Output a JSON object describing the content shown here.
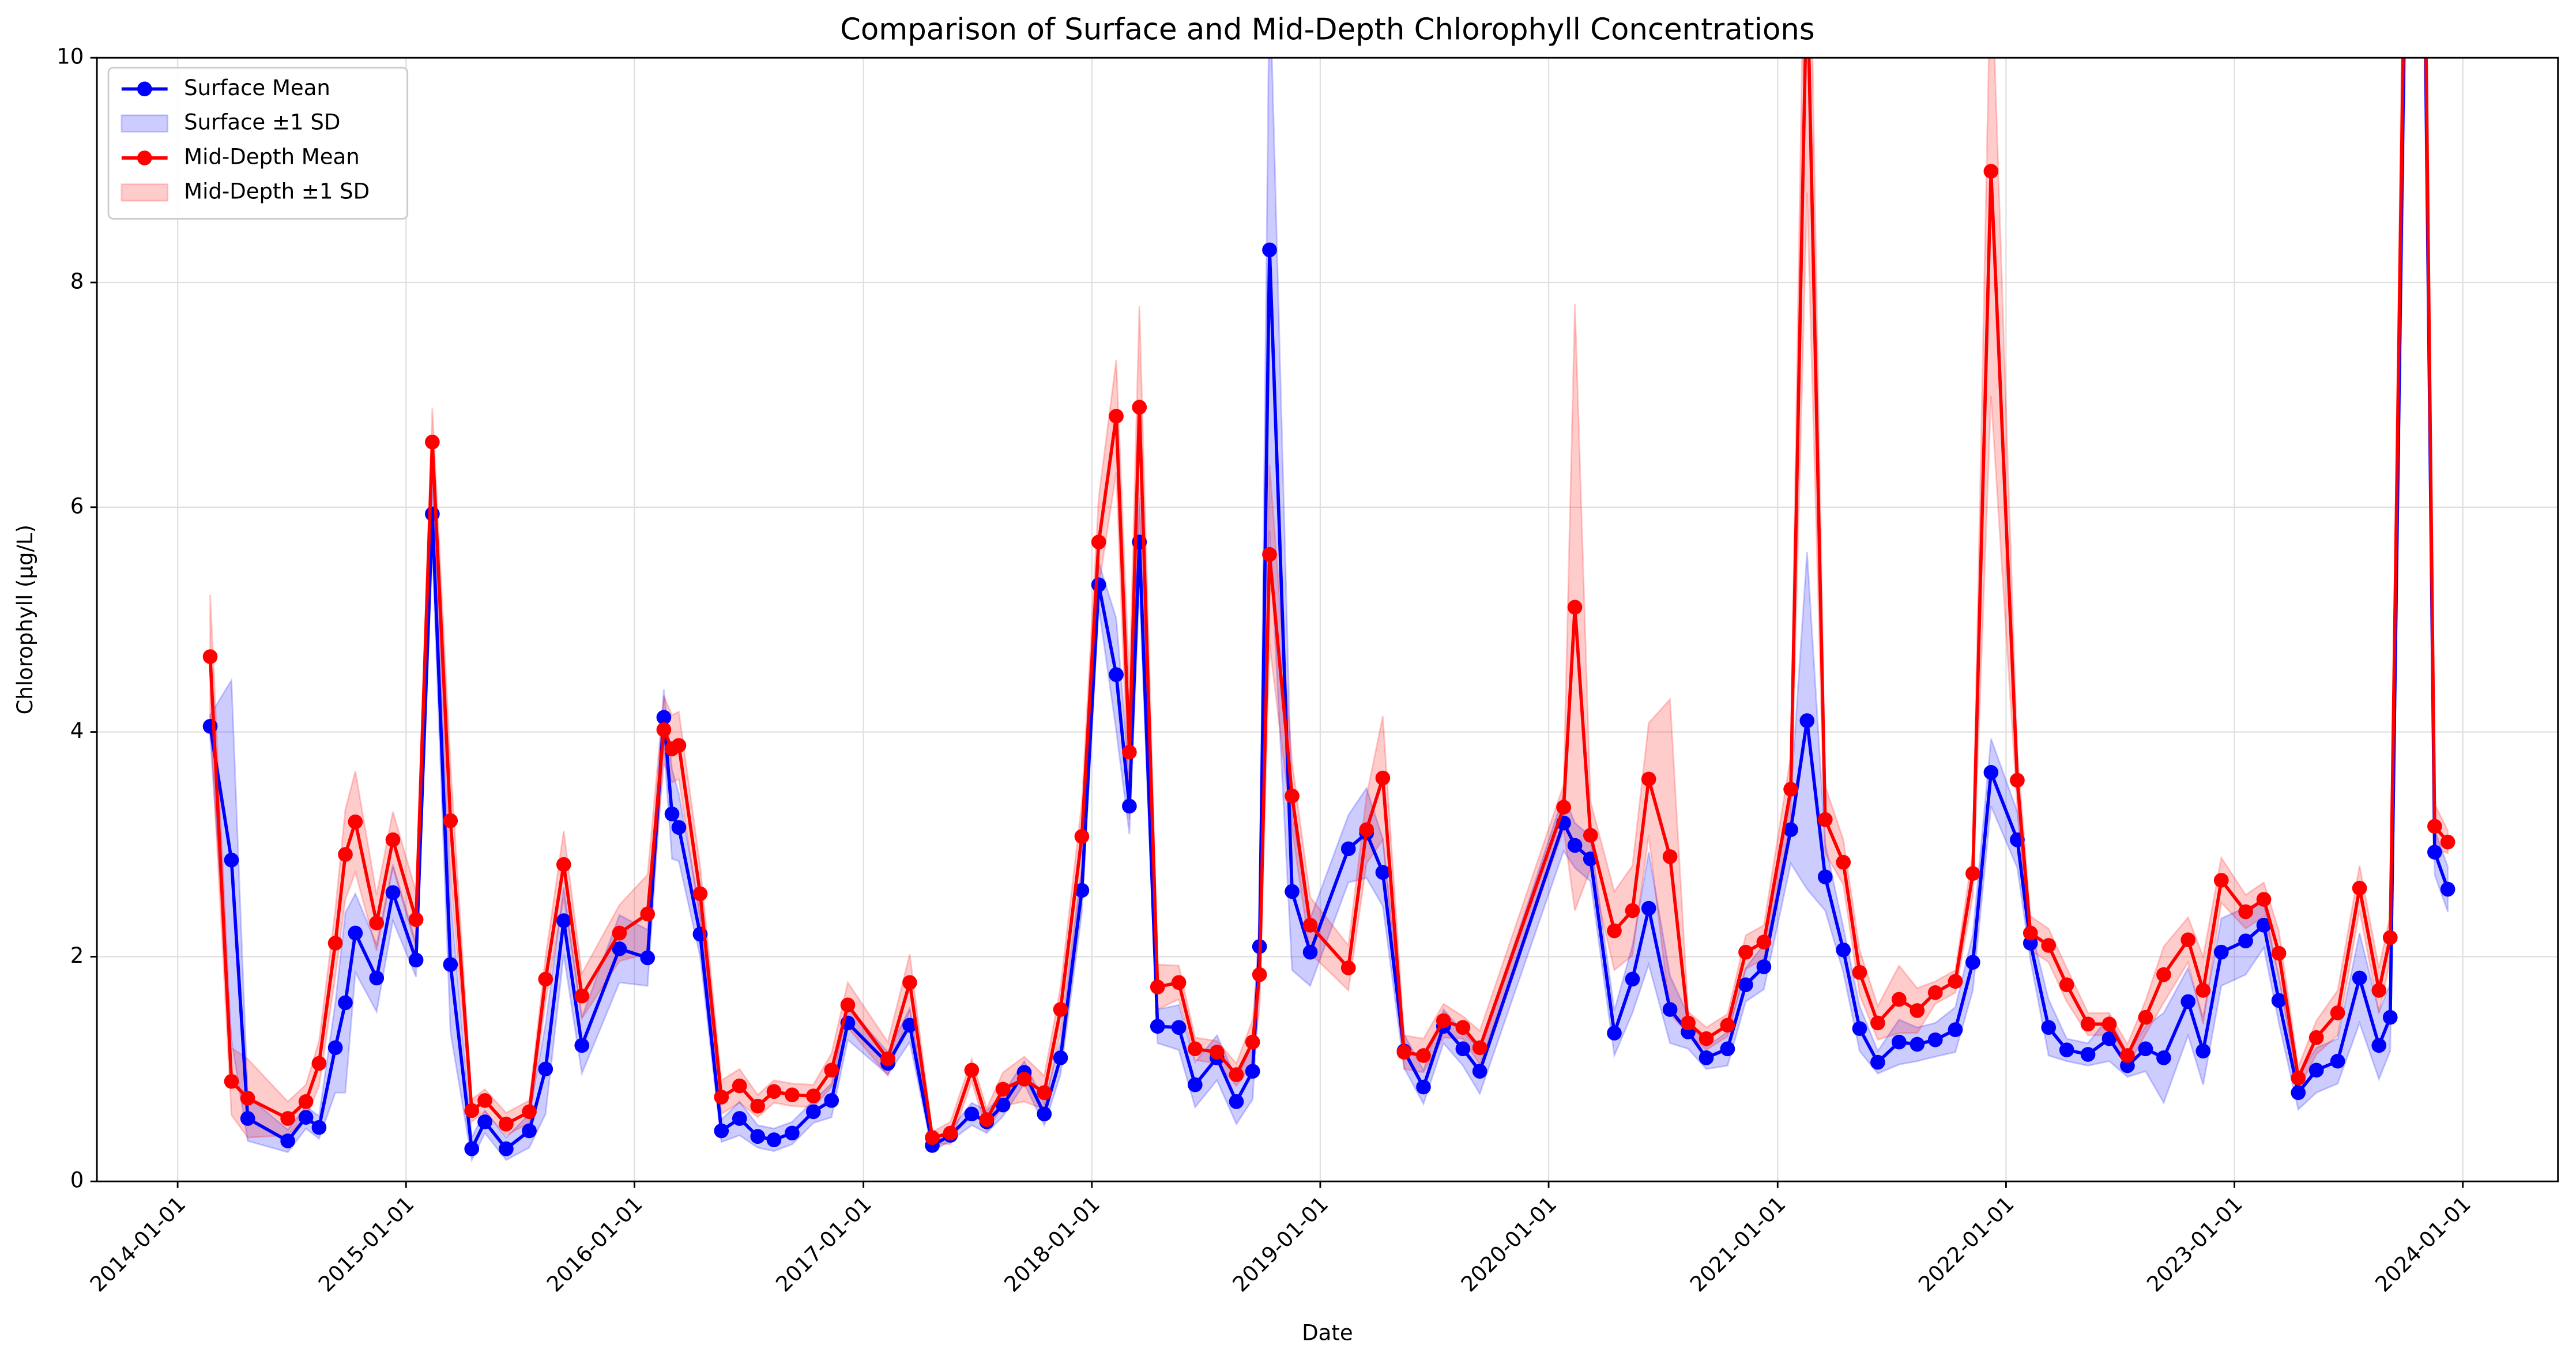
{
  "chart_data": {
    "type": "line",
    "title": "Comparison of Surface and Mid-Depth Chlorophyll Concentrations",
    "xlabel": "Date",
    "ylabel": "Chlorophyll (µg/L)",
    "x": [
      "2014-02-22",
      "2014-03-28",
      "2014-04-23",
      "2014-06-26",
      "2014-07-25",
      "2014-08-15",
      "2014-09-10",
      "2014-09-26",
      "2014-10-12",
      "2014-11-15",
      "2014-12-11",
      "2015-01-17",
      "2015-02-12",
      "2015-03-13",
      "2015-04-16",
      "2015-05-07",
      "2015-06-10",
      "2015-07-17",
      "2015-08-12",
      "2015-09-10",
      "2015-10-09",
      "2015-12-08",
      "2016-01-22",
      "2016-02-17",
      "2016-03-01",
      "2016-03-12",
      "2016-04-15",
      "2016-05-19",
      "2016-06-17",
      "2016-07-16",
      "2016-08-11",
      "2016-09-09",
      "2016-10-13",
      "2016-11-11",
      "2016-12-07",
      "2017-02-09",
      "2017-03-16",
      "2017-04-21",
      "2017-05-20",
      "2017-06-23",
      "2017-07-17",
      "2017-08-12",
      "2017-09-15",
      "2017-10-17",
      "2017-11-12",
      "2017-12-16",
      "2018-01-12",
      "2018-02-09",
      "2018-03-02",
      "2018-03-18",
      "2018-04-16",
      "2018-05-20",
      "2018-06-15",
      "2018-07-20",
      "2018-08-20",
      "2018-09-15",
      "2018-09-26",
      "2018-10-12",
      "2018-11-17",
      "2018-12-16",
      "2019-02-15",
      "2019-03-16",
      "2019-04-11",
      "2019-05-15",
      "2019-06-15",
      "2019-07-17",
      "2019-08-17",
      "2019-09-13",
      "2020-01-25",
      "2020-02-12",
      "2020-03-08",
      "2020-04-15",
      "2020-05-14",
      "2020-06-09",
      "2020-07-13",
      "2020-08-11",
      "2020-09-09",
      "2020-10-13",
      "2020-11-11",
      "2020-12-10",
      "2021-01-22",
      "2021-02-17",
      "2021-03-18",
      "2021-04-16",
      "2021-05-12",
      "2021-06-10",
      "2021-07-14",
      "2021-08-12",
      "2021-09-10",
      "2021-10-12",
      "2021-11-09",
      "2021-12-08",
      "2022-01-19",
      "2022-02-09",
      "2022-03-10",
      "2022-04-08",
      "2022-05-12",
      "2022-06-15",
      "2022-07-14",
      "2022-08-12",
      "2022-09-10",
      "2022-10-19",
      "2022-11-12",
      "2022-12-11",
      "2023-01-19",
      "2023-02-17",
      "2023-03-13",
      "2023-04-13",
      "2023-05-12",
      "2023-06-15",
      "2023-07-20",
      "2023-08-20",
      "2023-09-07",
      "2023-10-04",
      "2023-10-30",
      "2023-11-17",
      "2023-12-08"
    ],
    "series": [
      {
        "name": "Surface Mean",
        "band_name": "Surface ±1 SD",
        "color": "#0000ff",
        "values": [
          4.05,
          2.86,
          0.56,
          0.36,
          0.57,
          0.48,
          1.19,
          1.59,
          2.21,
          1.81,
          2.57,
          1.97,
          5.94,
          1.93,
          0.29,
          0.53,
          0.29,
          0.45,
          1.0,
          2.32,
          1.21,
          2.07,
          1.99,
          4.13,
          3.27,
          3.15,
          2.2,
          0.45,
          0.56,
          0.4,
          0.37,
          0.43,
          0.62,
          0.72,
          1.41,
          1.05,
          1.39,
          0.32,
          0.41,
          0.6,
          0.53,
          0.68,
          0.97,
          0.6,
          1.1,
          2.59,
          5.31,
          4.51,
          3.34,
          5.69,
          1.38,
          1.37,
          0.86,
          1.1,
          0.71,
          0.98,
          2.09,
          8.29,
          2.58,
          2.04,
          2.96,
          3.1,
          2.75,
          1.16,
          0.84,
          1.38,
          1.18,
          0.98,
          3.19,
          2.99,
          2.87,
          1.32,
          1.8,
          2.43,
          1.53,
          1.33,
          1.1,
          1.18,
          1.75,
          1.91,
          3.13,
          4.1,
          2.71,
          2.06,
          1.36,
          1.06,
          1.24,
          1.22,
          1.26,
          1.35,
          1.95,
          3.64,
          3.04,
          2.12,
          1.37,
          1.17,
          1.13,
          1.27,
          1.03,
          1.18,
          1.1,
          1.6,
          1.16,
          2.04,
          2.14,
          2.28,
          1.61,
          0.79,
          0.99,
          1.07,
          1.81,
          1.21,
          1.46,
          12.1,
          11.8,
          2.93,
          2.6
        ],
        "sd": [
          0.1,
          1.6,
          0.2,
          0.1,
          0.1,
          0.1,
          0.4,
          0.8,
          0.35,
          0.3,
          0.25,
          0.15,
          0.3,
          0.6,
          0.1,
          0.1,
          0.1,
          0.15,
          0.4,
          0.3,
          0.25,
          0.3,
          0.25,
          0.25,
          0.4,
          0.3,
          0.2,
          0.1,
          0.15,
          0.1,
          0.1,
          0.1,
          0.1,
          0.15,
          0.15,
          0.1,
          0.15,
          0.05,
          0.05,
          0.1,
          0.1,
          0.1,
          0.1,
          0.1,
          0.15,
          0.2,
          0.2,
          0.5,
          0.25,
          0.4,
          0.15,
          0.2,
          0.2,
          0.2,
          0.2,
          0.25,
          0.3,
          2.5,
          0.7,
          0.3,
          0.3,
          0.4,
          0.3,
          0.15,
          0.15,
          0.15,
          0.15,
          0.2,
          0.25,
          0.2,
          0.2,
          0.2,
          0.3,
          0.5,
          0.3,
          0.15,
          0.1,
          0.15,
          0.15,
          0.2,
          0.3,
          1.5,
          0.3,
          0.2,
          0.2,
          0.1,
          0.2,
          0.15,
          0.15,
          0.2,
          0.25,
          0.3,
          0.25,
          0.15,
          0.25,
          0.1,
          0.1,
          0.2,
          0.1,
          0.2,
          0.4,
          0.3,
          0.3,
          0.3,
          0.3,
          0.2,
          0.2,
          0.15,
          0.2,
          0.2,
          0.4,
          0.3,
          0.3,
          1.0,
          1.0,
          0.2,
          0.2
        ]
      },
      {
        "name": "Mid-Depth Mean",
        "band_name": "Mid-Depth ±1 SD",
        "color": "#ff0000",
        "values": [
          4.67,
          0.89,
          0.74,
          0.56,
          0.71,
          1.05,
          2.12,
          2.91,
          3.2,
          2.3,
          3.04,
          2.33,
          6.58,
          3.21,
          0.63,
          0.72,
          0.51,
          0.62,
          1.8,
          2.82,
          1.65,
          2.21,
          2.38,
          4.02,
          3.85,
          3.88,
          2.56,
          0.75,
          0.85,
          0.67,
          0.8,
          0.77,
          0.76,
          0.99,
          1.57,
          1.09,
          1.77,
          0.39,
          0.43,
          0.99,
          0.55,
          0.82,
          0.91,
          0.79,
          1.53,
          3.07,
          5.69,
          6.81,
          3.82,
          6.89,
          1.73,
          1.77,
          1.18,
          1.15,
          0.95,
          1.24,
          1.84,
          5.58,
          3.43,
          2.28,
          1.9,
          3.13,
          3.59,
          1.15,
          1.12,
          1.43,
          1.37,
          1.19,
          3.33,
          5.11,
          3.08,
          2.23,
          2.41,
          3.58,
          2.89,
          1.41,
          1.27,
          1.39,
          2.04,
          2.13,
          3.49,
          10.8,
          3.22,
          2.84,
          1.86,
          1.41,
          1.62,
          1.52,
          1.68,
          1.78,
          2.74,
          8.99,
          3.57,
          2.21,
          2.1,
          1.75,
          1.4,
          1.4,
          1.12,
          1.46,
          1.84,
          2.15,
          1.7,
          2.68,
          2.4,
          2.51,
          2.03,
          0.92,
          1.28,
          1.5,
          2.61,
          1.7,
          2.17,
          12.5,
          12.2,
          3.16,
          3.02
        ],
        "sd": [
          0.55,
          0.3,
          0.35,
          0.15,
          0.15,
          0.2,
          0.3,
          0.4,
          0.45,
          0.25,
          0.25,
          0.25,
          0.3,
          0.5,
          0.1,
          0.1,
          0.1,
          0.1,
          0.2,
          0.3,
          0.2,
          0.25,
          0.35,
          0.3,
          0.3,
          0.3,
          0.25,
          0.15,
          0.15,
          0.1,
          0.1,
          0.1,
          0.1,
          0.15,
          0.2,
          0.15,
          0.25,
          0.05,
          0.1,
          0.1,
          0.1,
          0.15,
          0.2,
          0.15,
          0.2,
          0.3,
          0.4,
          0.5,
          0.6,
          0.9,
          0.2,
          0.15,
          0.1,
          0.1,
          0.1,
          0.2,
          0.3,
          0.8,
          0.3,
          0.25,
          0.2,
          0.3,
          0.55,
          0.15,
          0.15,
          0.15,
          0.1,
          0.15,
          0.2,
          2.7,
          0.3,
          0.35,
          0.4,
          0.5,
          1.4,
          0.1,
          0.1,
          0.1,
          0.15,
          0.15,
          0.3,
          2.0,
          0.3,
          0.2,
          0.2,
          0.15,
          0.3,
          0.2,
          0.1,
          0.1,
          0.2,
          2.0,
          0.25,
          0.15,
          0.15,
          0.15,
          0.1,
          0.1,
          0.1,
          0.15,
          0.25,
          0.2,
          0.3,
          0.2,
          0.15,
          0.15,
          0.2,
          0.1,
          0.15,
          0.2,
          0.2,
          0.2,
          0.2,
          1.2,
          1.2,
          0.2,
          0.1
        ]
      }
    ],
    "xlim": [
      "2013-08-25",
      "2024-06-01"
    ],
    "xticks": [
      "2014-01-01",
      "2015-01-01",
      "2016-01-01",
      "2017-01-01",
      "2018-01-01",
      "2019-01-01",
      "2020-01-01",
      "2021-01-01",
      "2022-01-01",
      "2023-01-01",
      "2024-01-01"
    ],
    "ylim": [
      0,
      10
    ],
    "yticks": [
      0,
      2,
      4,
      6,
      8,
      10
    ],
    "grid": true,
    "legend": "upper left",
    "band_opacity": 0.2
  }
}
